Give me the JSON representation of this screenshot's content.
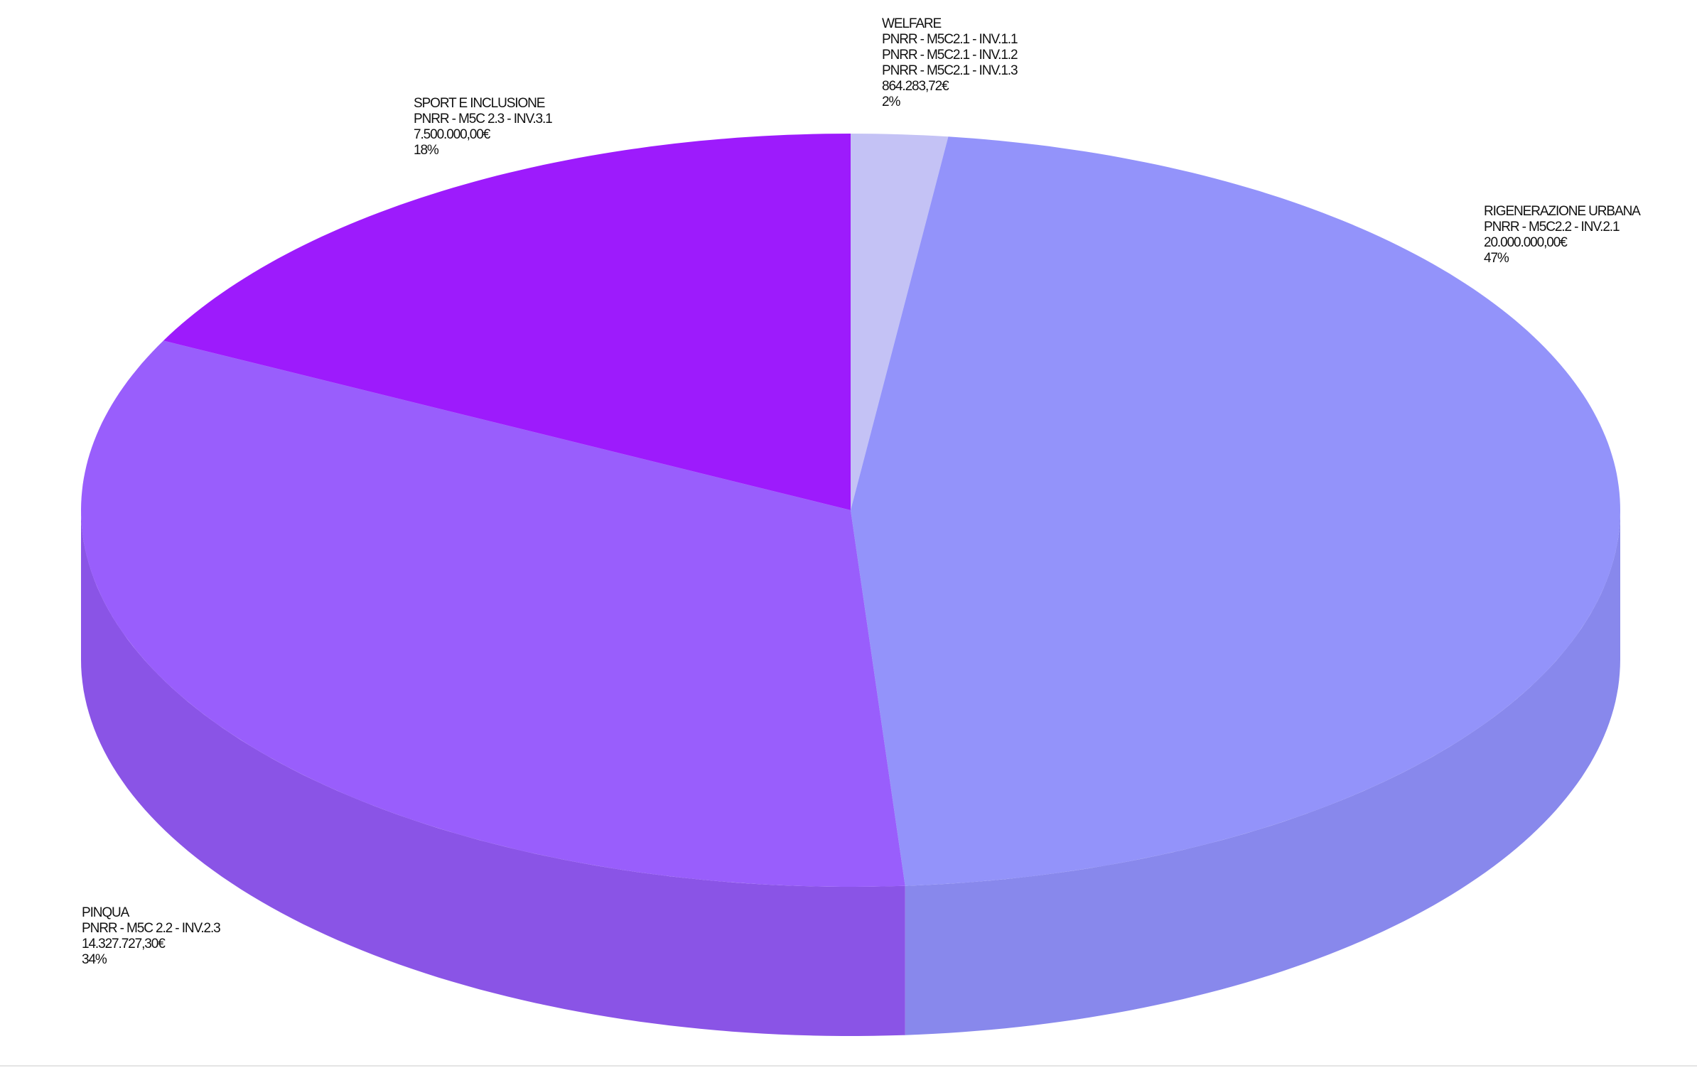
{
  "chart_data": {
    "type": "pie",
    "style": "3d",
    "start_angle": "top, clockwise",
    "slices": [
      {
        "name": "WELFARE",
        "codes": [
          "PNRR - M5C2.1 - INV.1.1",
          "PNRR - M5C2.1 - INV.1.2",
          "PNRR - M5C2.1 - INV.1.3"
        ],
        "value": 864283.72,
        "value_label": "864.283,72€",
        "percent_label": "2%",
        "color": "#c4c2f5",
        "side_color": "#b2b0e6"
      },
      {
        "name": "RIGENERAZIONE URBANA",
        "codes": [
          "PNRR - M5C2.2 - INV.2.1"
        ],
        "value": 20000000.0,
        "value_label": "20.000.000,00€",
        "percent_label": "47%",
        "color": "#9393fa",
        "side_color": "#8888ec"
      },
      {
        "name": "PINQUA",
        "codes": [
          "PNRR - M5C 2.2 - INV.2.3"
        ],
        "value": 14327727.3,
        "value_label": "14.327.727,30€",
        "percent_label": "34%",
        "color": "#995efc",
        "side_color": "#8a54e6"
      },
      {
        "name": "SPORT E INCLUSIONE",
        "codes": [
          "PNRR - M5C 2.3 - INV.3.1"
        ],
        "value": 7500000.0,
        "value_label": "7.500.000,00€",
        "percent_label": "18%",
        "color": "#9d1bfc",
        "side_color": "#8616d8"
      }
    ]
  }
}
